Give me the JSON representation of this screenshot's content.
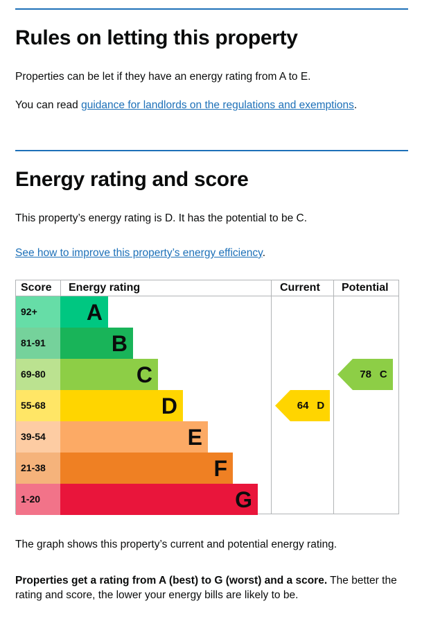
{
  "rules": {
    "heading": "Rules on letting this property",
    "text1": "Properties can be let if they have an energy rating from A to E.",
    "text2_pre": "You can read ",
    "text2_link": "guidance for landlords on the regulations and exemptions",
    "text2_post": "."
  },
  "energy": {
    "heading": "Energy rating and score",
    "text1": "This property’s energy rating is D. It has the potential to be C.",
    "link": "See how to improve this property’s energy efficiency",
    "link_post": "."
  },
  "chart": {
    "headers": {
      "score": "Score",
      "rating": "Energy rating",
      "current": "Current",
      "potential": "Potential"
    },
    "bands": [
      {
        "score": "92+",
        "letter": "A",
        "color": "#00c781",
        "score_bg": "#66dda7"
      },
      {
        "score": "81-91",
        "letter": "B",
        "color": "#19b459",
        "score_bg": "#75d29b"
      },
      {
        "score": "69-80",
        "letter": "C",
        "color": "#8dce46",
        "score_bg": "#bbe290"
      },
      {
        "score": "55-68",
        "letter": "D",
        "color": "#ffd500",
        "score_bg": "#ffe666"
      },
      {
        "score": "39-54",
        "letter": "E",
        "color": "#fcaa65",
        "score_bg": "#fdcca3"
      },
      {
        "score": "21-38",
        "letter": "F",
        "color": "#ef8023",
        "score_bg": "#f5b37b"
      },
      {
        "score": "1-20",
        "letter": "G",
        "color": "#e9153b",
        "score_bg": "#f27389"
      }
    ],
    "current": {
      "score": "64",
      "letter": "D",
      "color": "#ffd500"
    },
    "potential": {
      "score": "78",
      "letter": "C",
      "color": "#8dce46"
    }
  },
  "footer": {
    "text1": "The graph shows this property’s current and potential energy rating.",
    "bold": "Properties get a rating from A (best) to G (worst) and a score.",
    "rest": " The better the rating and score, the lower your energy bills are likely to be."
  }
}
